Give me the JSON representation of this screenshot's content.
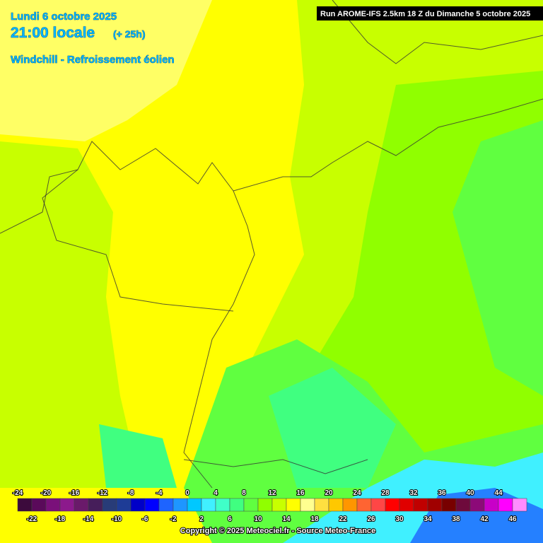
{
  "header": {
    "date": "Lundi 6 octobre 2025",
    "time": "21:00 locale",
    "lead": "(+ 25h)",
    "parameter": "Windchill - Refroissement éolien",
    "run": "Run AROME-IFS 2.5km 18 Z du Dimanche 5 octobre 2025"
  },
  "legend": {
    "values": [
      -24,
      -22,
      -20,
      -18,
      -16,
      -14,
      -12,
      -10,
      -8,
      -6,
      -4,
      -2,
      0,
      2,
      4,
      6,
      8,
      10,
      12,
      14,
      16,
      18,
      20,
      22,
      24,
      26,
      28,
      30,
      32,
      34,
      36,
      38,
      40,
      42,
      44,
      46
    ],
    "colors": [
      "#3c0a3c",
      "#5a0a5a",
      "#7a107a",
      "#8c1a8c",
      "#6a1a6a",
      "#461e5a",
      "#283c78",
      "#1e3c96",
      "#0000c8",
      "#0000ff",
      "#1e64ff",
      "#1e96ff",
      "#00c8ff",
      "#40f0ff",
      "#40ffc8",
      "#40ff80",
      "#60ff40",
      "#90ff00",
      "#c8ff00",
      "#ffff00",
      "#ffff90",
      "#ffe040",
      "#ffc800",
      "#ff9600",
      "#ff6432",
      "#ff4646",
      "#ff0000",
      "#e00000",
      "#c00000",
      "#a00000",
      "#780000",
      "#6e0a3c",
      "#8c0a78",
      "#c800c8",
      "#ff00ff",
      "#ff8cff"
    ]
  },
  "footer": {
    "copyright": "Copyright © 2025 Meteociel.fr - Source Meteo-France"
  }
}
